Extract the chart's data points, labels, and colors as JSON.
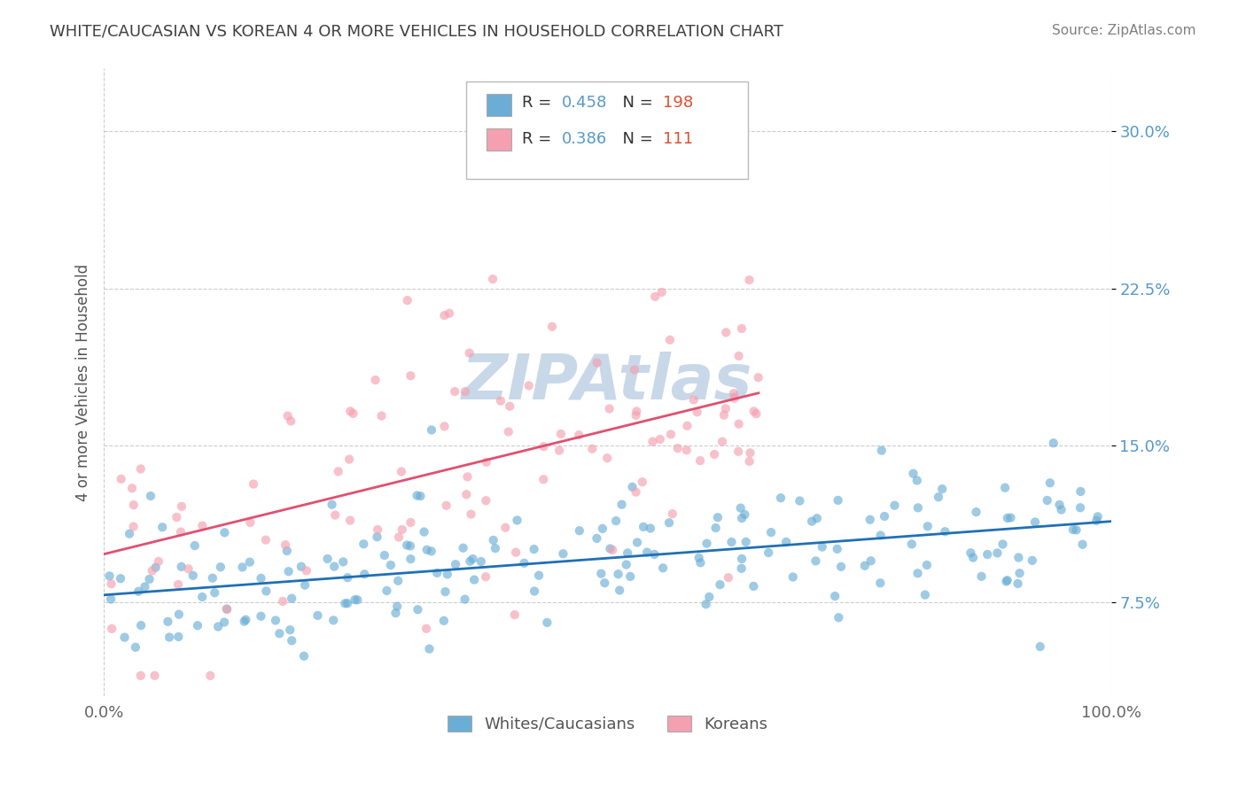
{
  "title": "WHITE/CAUCASIAN VS KOREAN 4 OR MORE VEHICLES IN HOUSEHOLD CORRELATION CHART",
  "source": "Source: ZipAtlas.com",
  "ylabel": "4 or more Vehicles in Household",
  "xlabel_ticks": [
    "0.0%",
    "100.0%"
  ],
  "ytick_labels": [
    "7.5%",
    "15.0%",
    "22.5%",
    "30.0%"
  ],
  "ytick_values": [
    0.075,
    0.15,
    0.225,
    0.3
  ],
  "xlim": [
    0.0,
    1.0
  ],
  "ylim": [
    0.03,
    0.33
  ],
  "legend_labels": [
    "Whites/Caucasians",
    "Koreans"
  ],
  "blue_R": 0.458,
  "blue_N": 198,
  "pink_R": 0.386,
  "pink_N": 111,
  "blue_color": "#6aaed6",
  "pink_color": "#f4a0b0",
  "blue_line_color": "#2070b4",
  "pink_line_color": "#e05070",
  "title_color": "#404040",
  "source_color": "#808080",
  "label_color": "#5599cc",
  "grid_color": "#cccccc",
  "watermark_color": "#c8d8e8",
  "background_color": "#ffffff"
}
